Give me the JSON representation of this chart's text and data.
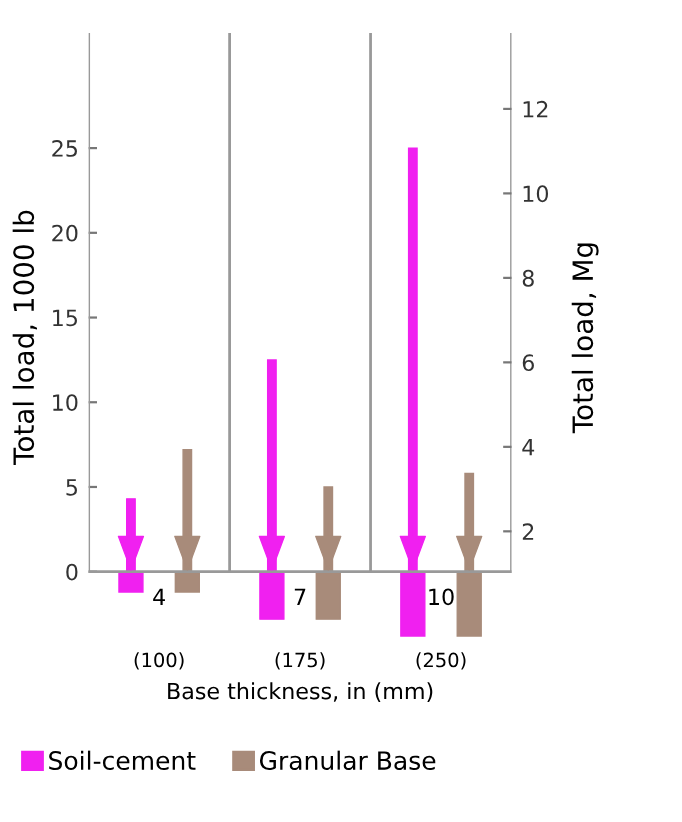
{
  "chart_data": {
    "type": "bar",
    "categories": [
      "(100)",
      "(175)",
      "(250)"
    ],
    "xlabel": "Base thickness, in (mm)",
    "ylabel": "Total load, 1000 lb",
    "y2label": "Total load, Mg",
    "ylim": [
      -4.1,
      31.8
    ],
    "yticks": [
      0,
      5,
      10,
      15,
      20,
      25
    ],
    "y2lim": [
      -0.6,
      13.8
    ],
    "y2ticks": [
      2,
      4,
      6,
      8,
      10,
      12
    ],
    "series": [
      {
        "name": "Soil-cement",
        "color": "#f020f0",
        "values": [
          4.3,
          12.5,
          25
        ]
      },
      {
        "name": "Granular Base",
        "color": "#a88b7a",
        "values": [
          7.2,
          5,
          5.8
        ]
      },
      {
        "color": "#f020f0",
        "values": [
          -1.2,
          -2.8,
          -3.8
        ]
      },
      {
        "color": "#a88b7a",
        "values": [
          -1.2,
          -2.8,
          -3.8
        ]
      }
    ],
    "annotations": [
      "4",
      "7",
      "10"
    ],
    "ref_lines": [
      {
        "axis": "y",
        "value": 0,
        "color": "#999999"
      }
    ],
    "legend": "bottom"
  }
}
